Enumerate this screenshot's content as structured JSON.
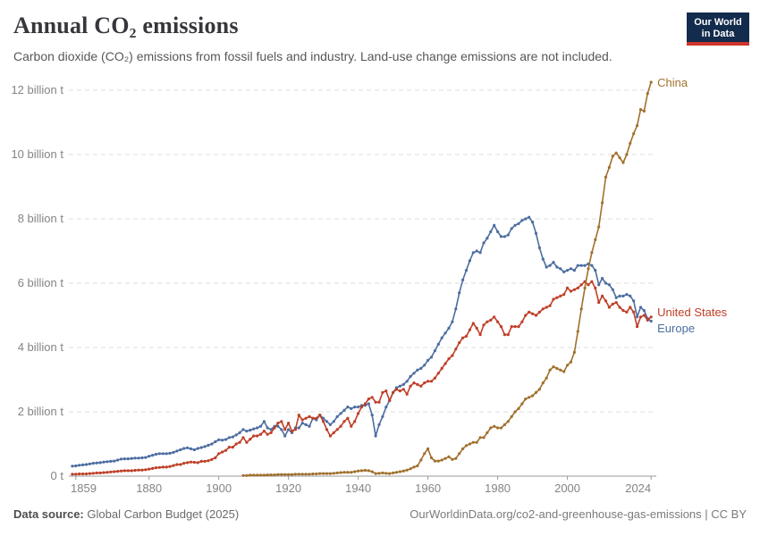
{
  "header": {
    "title": "Annual CO₂ emissions",
    "subtitle": "Carbon dioxide (CO₂) emissions from fossil fuels and industry. Land-use change emissions are not included.",
    "logo": {
      "line1": "Our World",
      "line2": "in Data",
      "bg_color": "#132B4D",
      "bar_color": "#CE352C"
    }
  },
  "footer": {
    "source_label": "Data source:",
    "source_value": "Global Carbon Budget (2025)",
    "link": "OurWorldinData.org/co2-and-greenhouse-gas-emissions | CC BY"
  },
  "chart_data": {
    "type": "line",
    "title": "Annual CO₂ emissions",
    "xlabel": "",
    "ylabel": "",
    "grid": true,
    "legend_position": "end-of-line",
    "xlim": [
      1857,
      2025.5
    ],
    "ylim": [
      0,
      12.5
    ],
    "x_ticks": [
      "1859",
      "1880",
      "1900",
      "1920",
      "1940",
      "1960",
      "1980",
      "2000",
      "2024"
    ],
    "y_ticks": [
      {
        "value": 0,
        "label": "0 t"
      },
      {
        "value": 2,
        "label": "2 billion t"
      },
      {
        "value": 4,
        "label": "4 billion t"
      },
      {
        "value": 6,
        "label": "6 billion t"
      },
      {
        "value": 8,
        "label": "8 billion t"
      },
      {
        "value": 10,
        "label": "10 billion t"
      },
      {
        "value": 12,
        "label": "12 billion t"
      }
    ],
    "series": [
      {
        "name": "Europe",
        "color": "#4C6DA0",
        "start_year": 1858,
        "values": [
          0.31,
          0.32,
          0.34,
          0.35,
          0.36,
          0.38,
          0.4,
          0.41,
          0.42,
          0.44,
          0.45,
          0.46,
          0.47,
          0.5,
          0.53,
          0.54,
          0.54,
          0.55,
          0.56,
          0.56,
          0.57,
          0.58,
          0.62,
          0.65,
          0.68,
          0.7,
          0.7,
          0.7,
          0.71,
          0.74,
          0.78,
          0.82,
          0.86,
          0.88,
          0.85,
          0.82,
          0.86,
          0.89,
          0.92,
          0.96,
          1.0,
          1.07,
          1.13,
          1.12,
          1.14,
          1.2,
          1.22,
          1.28,
          1.35,
          1.45,
          1.4,
          1.43,
          1.47,
          1.5,
          1.55,
          1.7,
          1.5,
          1.45,
          1.55,
          1.55,
          1.45,
          1.25,
          1.45,
          1.35,
          1.5,
          1.5,
          1.65,
          1.6,
          1.55,
          1.8,
          1.75,
          1.9,
          1.8,
          1.7,
          1.6,
          1.7,
          1.85,
          1.95,
          2.05,
          2.15,
          2.1,
          2.15,
          2.15,
          2.2,
          2.2,
          2.25,
          1.9,
          1.25,
          1.6,
          1.85,
          2.15,
          2.35,
          2.6,
          2.75,
          2.8,
          2.85,
          2.95,
          3.1,
          3.2,
          3.3,
          3.35,
          3.45,
          3.6,
          3.7,
          3.9,
          4.1,
          4.3,
          4.45,
          4.6,
          4.8,
          5.2,
          5.7,
          6.1,
          6.4,
          6.7,
          6.95,
          7.0,
          6.95,
          7.25,
          7.4,
          7.6,
          7.8,
          7.6,
          7.45,
          7.45,
          7.5,
          7.7,
          7.8,
          7.85,
          7.95,
          8.0,
          8.05,
          7.9,
          7.55,
          7.1,
          6.75,
          6.5,
          6.55,
          6.65,
          6.5,
          6.45,
          6.35,
          6.4,
          6.45,
          6.4,
          6.55,
          6.55,
          6.55,
          6.6,
          6.55,
          6.4,
          5.95,
          6.15,
          6.0,
          5.95,
          5.8,
          5.55,
          5.6,
          5.6,
          5.65,
          5.6,
          5.45,
          4.95,
          5.25,
          5.15,
          4.9,
          4.82
        ]
      },
      {
        "name": "United States",
        "color": "#BE3F27",
        "start_year": 1858,
        "values": [
          0.06,
          0.06,
          0.07,
          0.07,
          0.07,
          0.08,
          0.09,
          0.1,
          0.1,
          0.11,
          0.12,
          0.13,
          0.14,
          0.15,
          0.16,
          0.17,
          0.17,
          0.17,
          0.18,
          0.19,
          0.19,
          0.2,
          0.22,
          0.24,
          0.26,
          0.27,
          0.28,
          0.28,
          0.3,
          0.33,
          0.36,
          0.36,
          0.4,
          0.42,
          0.44,
          0.43,
          0.42,
          0.46,
          0.46,
          0.48,
          0.52,
          0.57,
          0.7,
          0.75,
          0.8,
          0.9,
          0.9,
          1.0,
          1.05,
          1.2,
          1.05,
          1.15,
          1.25,
          1.25,
          1.3,
          1.4,
          1.3,
          1.35,
          1.5,
          1.65,
          1.7,
          1.45,
          1.65,
          1.4,
          1.45,
          1.9,
          1.75,
          1.8,
          1.85,
          1.8,
          1.8,
          1.9,
          1.7,
          1.45,
          1.25,
          1.35,
          1.45,
          1.55,
          1.7,
          1.8,
          1.55,
          1.7,
          1.95,
          2.15,
          2.25,
          2.4,
          2.45,
          2.3,
          2.3,
          2.6,
          2.65,
          2.35,
          2.6,
          2.7,
          2.65,
          2.7,
          2.55,
          2.8,
          2.9,
          2.85,
          2.8,
          2.9,
          2.95,
          2.95,
          3.05,
          3.2,
          3.35,
          3.5,
          3.65,
          3.75,
          3.95,
          4.15,
          4.3,
          4.35,
          4.55,
          4.75,
          4.6,
          4.4,
          4.7,
          4.8,
          4.85,
          4.95,
          4.8,
          4.65,
          4.4,
          4.4,
          4.65,
          4.65,
          4.65,
          4.8,
          5.0,
          5.1,
          5.05,
          5.0,
          5.1,
          5.2,
          5.25,
          5.3,
          5.5,
          5.55,
          5.6,
          5.65,
          5.85,
          5.75,
          5.8,
          5.85,
          5.95,
          6.05,
          5.95,
          6.05,
          5.85,
          5.4,
          5.6,
          5.45,
          5.25,
          5.35,
          5.4,
          5.25,
          5.15,
          5.1,
          5.25,
          5.1,
          4.65,
          4.95,
          5.0,
          4.85,
          4.95
        ]
      },
      {
        "name": "China",
        "color": "#A1702D",
        "start_year": 1907,
        "values": [
          0.02,
          0.02,
          0.03,
          0.03,
          0.03,
          0.03,
          0.03,
          0.04,
          0.04,
          0.04,
          0.05,
          0.05,
          0.05,
          0.05,
          0.05,
          0.06,
          0.06,
          0.06,
          0.06,
          0.06,
          0.07,
          0.07,
          0.08,
          0.08,
          0.08,
          0.08,
          0.09,
          0.1,
          0.11,
          0.12,
          0.12,
          0.12,
          0.14,
          0.16,
          0.17,
          0.18,
          0.17,
          0.14,
          0.08,
          0.09,
          0.1,
          0.09,
          0.08,
          0.1,
          0.12,
          0.14,
          0.16,
          0.19,
          0.23,
          0.28,
          0.32,
          0.5,
          0.7,
          0.85,
          0.57,
          0.47,
          0.47,
          0.5,
          0.55,
          0.6,
          0.52,
          0.55,
          0.7,
          0.85,
          0.95,
          1.0,
          1.05,
          1.05,
          1.2,
          1.2,
          1.35,
          1.5,
          1.55,
          1.5,
          1.5,
          1.6,
          1.7,
          1.85,
          2.0,
          2.1,
          2.25,
          2.4,
          2.45,
          2.5,
          2.6,
          2.7,
          2.9,
          3.05,
          3.3,
          3.4,
          3.35,
          3.3,
          3.25,
          3.45,
          3.55,
          3.85,
          4.5,
          5.2,
          5.85,
          6.45,
          6.95,
          7.35,
          7.75,
          8.5,
          9.3,
          9.6,
          9.95,
          10.05,
          9.9,
          9.75,
          10.0,
          10.35,
          10.65,
          10.9,
          11.4,
          11.35,
          11.9,
          12.25
        ]
      }
    ]
  }
}
